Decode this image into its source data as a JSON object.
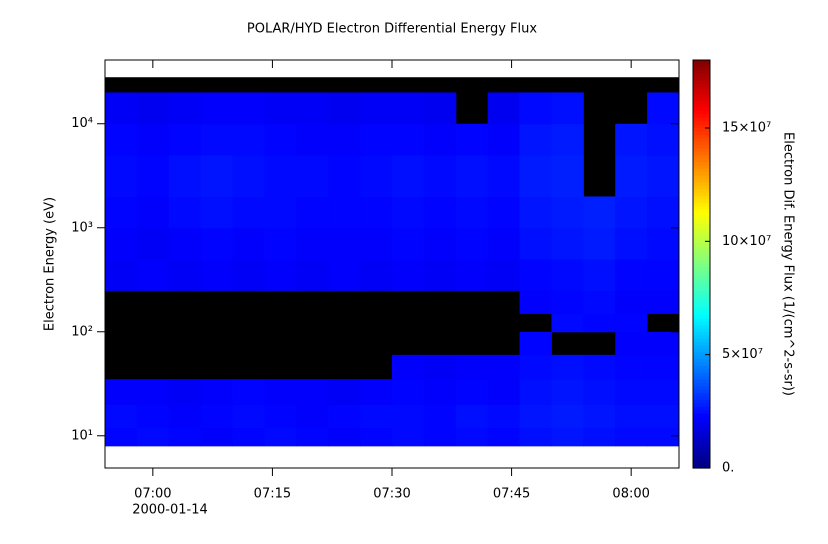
{
  "chart_data": {
    "type": "spectrogram",
    "title": "POLAR/HYD  Electron Differential Energy Flux",
    "ylabel": "Electron Energy (eV)",
    "zlabel": "Electron Dif. Energy Flux (1/(cm^2-s-sr))",
    "date_label": "2000-01-14",
    "ylog": true,
    "xlim": [
      "2000-01-14 06:54",
      "2000-01-14 08:06"
    ],
    "xticks": [
      {
        "value": "2000-01-14 07:00",
        "label": "07:00"
      },
      {
        "value": "2000-01-14 07:15",
        "label": "07:15"
      },
      {
        "value": "2000-01-14 07:30",
        "label": "07:30"
      },
      {
        "value": "2000-01-14 07:45",
        "label": "07:45"
      },
      {
        "value": "2000-01-14 08:00",
        "label": "08:00"
      }
    ],
    "ylim": [
      4.9,
      41000
    ],
    "yticks": [
      {
        "value": 10,
        "label": "10¹"
      },
      {
        "value": 100,
        "label": "10²"
      },
      {
        "value": 1000,
        "label": "10³"
      },
      {
        "value": 10000,
        "label": "10⁴"
      }
    ],
    "zlim": [
      0,
      180000000
    ],
    "zticks": [
      {
        "value": 0,
        "label": "0."
      },
      {
        "value": 50000000,
        "label": "5×10⁷"
      },
      {
        "value": 100000000,
        "label": "10×10⁷"
      },
      {
        "value": 150000000,
        "label": "15×10⁷"
      }
    ],
    "colormap": "jet",
    "time_bins": [
      "2000-01-14 06:54",
      "2000-01-14 06:58",
      "2000-01-14 07:02",
      "2000-01-14 07:06",
      "2000-01-14 07:10",
      "2000-01-14 07:14",
      "2000-01-14 07:18",
      "2000-01-14 07:22",
      "2000-01-14 07:26",
      "2000-01-14 07:30",
      "2000-01-14 07:34",
      "2000-01-14 07:38",
      "2000-01-14 07:42",
      "2000-01-14 07:46",
      "2000-01-14 07:50",
      "2000-01-14 07:54",
      "2000-01-14 07:58",
      "2000-01-14 08:02",
      "2000-01-14 08:06"
    ],
    "energy_bins": [
      8,
      12,
      20,
      35,
      60,
      100,
      150,
      250,
      500,
      1000,
      2000,
      5000,
      10000,
      20000,
      28000
    ],
    "z": [
      [
        23000000,
        24000000,
        22000000,
        null,
        null,
        null,
        null,
        21000000,
        22000000,
        23000000,
        24000000,
        23000000,
        21000000,
        null
      ],
      [
        24000000,
        23000000,
        22000000,
        null,
        null,
        null,
        null,
        22000000,
        21000000,
        22000000,
        23000000,
        22000000,
        20000000,
        null
      ],
      [
        23000000,
        22000000,
        21000000,
        null,
        null,
        null,
        null,
        21000000,
        22000000,
        24000000,
        25000000,
        23000000,
        21000000,
        null
      ],
      [
        22000000,
        23000000,
        22000000,
        null,
        null,
        null,
        null,
        22000000,
        23000000,
        25000000,
        26000000,
        24000000,
        22000000,
        null
      ],
      [
        23000000,
        24000000,
        23000000,
        null,
        null,
        null,
        null,
        21000000,
        22000000,
        24000000,
        25000000,
        24000000,
        22000000,
        null
      ],
      [
        24000000,
        23000000,
        22000000,
        null,
        null,
        null,
        null,
        22000000,
        23000000,
        24000000,
        24000000,
        23000000,
        21000000,
        null
      ],
      [
        23000000,
        22000000,
        22000000,
        null,
        null,
        null,
        null,
        21000000,
        22000000,
        23000000,
        24000000,
        22000000,
        21000000,
        null
      ],
      [
        22000000,
        23000000,
        21000000,
        null,
        null,
        null,
        null,
        22000000,
        22000000,
        23000000,
        23000000,
        22000000,
        20000000,
        null
      ],
      [
        23000000,
        24000000,
        22000000,
        null,
        null,
        null,
        null,
        21000000,
        22000000,
        23000000,
        24000000,
        23000000,
        21000000,
        null
      ],
      [
        24000000,
        24000000,
        23000000,
        22000000,
        null,
        null,
        null,
        22000000,
        23000000,
        24000000,
        25000000,
        23000000,
        21000000,
        null
      ],
      [
        23000000,
        23000000,
        22000000,
        21000000,
        null,
        null,
        null,
        21000000,
        22000000,
        23000000,
        24000000,
        22000000,
        20000000,
        null
      ],
      [
        24000000,
        25000000,
        23000000,
        22000000,
        null,
        null,
        null,
        22000000,
        23000000,
        24000000,
        25000000,
        23000000,
        null,
        null
      ],
      [
        23000000,
        24000000,
        22000000,
        22000000,
        null,
        null,
        null,
        21000000,
        22000000,
        23000000,
        24000000,
        22000000,
        20000000,
        null
      ],
      [
        25000000,
        26000000,
        25000000,
        24000000,
        23000000,
        null,
        22000000,
        23000000,
        25000000,
        26000000,
        27000000,
        26000000,
        24000000,
        null
      ],
      [
        26000000,
        27000000,
        26000000,
        25000000,
        null,
        24000000,
        23000000,
        24000000,
        26000000,
        27000000,
        28000000,
        27000000,
        25000000,
        null
      ],
      [
        25000000,
        26000000,
        25000000,
        24000000,
        null,
        23000000,
        24000000,
        25000000,
        27000000,
        28000000,
        null,
        null,
        null,
        null
      ],
      [
        24000000,
        25000000,
        24000000,
        23000000,
        22000000,
        23000000,
        22000000,
        23000000,
        25000000,
        26000000,
        27000000,
        26000000,
        null,
        null
      ],
      [
        24000000,
        25000000,
        24000000,
        23000000,
        22000000,
        null,
        22000000,
        23000000,
        24000000,
        25000000,
        26000000,
        25000000,
        24000000,
        null
      ]
    ]
  }
}
